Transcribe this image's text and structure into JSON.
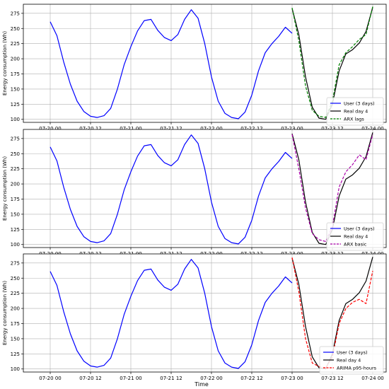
{
  "figure": {
    "xlabel": "Time",
    "x_ticks": [
      "07-20 00",
      "07-20 12",
      "07-21 00",
      "07-21 12",
      "07-22 00",
      "07-22 12",
      "07-23 00",
      "07-23 12",
      "07-24 00"
    ]
  },
  "chart_data": [
    {
      "type": "line",
      "ylabel": "Energy consumption (Wh)",
      "xlim": [
        -8,
        100
      ],
      "ylim": [
        95,
        290
      ],
      "grid": true,
      "legend_position": "bottom-right",
      "y_ticks": [
        100,
        125,
        150,
        175,
        200,
        225,
        250,
        275
      ],
      "series": [
        {
          "name": "User (3 days)",
          "color": "#0000ff",
          "dash": "solid",
          "x": [
            0,
            2,
            4,
            6,
            8,
            10,
            12,
            14,
            16,
            18,
            20,
            22,
            24,
            26,
            28,
            30,
            32,
            34,
            36,
            38,
            40,
            42,
            44,
            46,
            48,
            50,
            52,
            54,
            56,
            58,
            60,
            62,
            64,
            66,
            68,
            70,
            72
          ],
          "y": [
            261,
            238,
            195,
            158,
            130,
            113,
            105,
            103,
            106,
            118,
            150,
            190,
            220,
            246,
            263,
            265,
            247,
            235,
            230,
            240,
            265,
            281,
            267,
            225,
            170,
            130,
            110,
            103,
            101,
            112,
            140,
            180,
            210,
            225,
            237,
            252,
            242
          ]
        },
        {
          "name": "Real day 4",
          "color": "#000000",
          "dash": "solid",
          "x": [
            72,
            74,
            76,
            78,
            80,
            82,
            84,
            86,
            88,
            90,
            92,
            94,
            96
          ],
          "y": [
            283,
            240,
            170,
            120,
            102,
            100,
            125,
            180,
            208,
            215,
            226,
            245,
            285
          ]
        },
        {
          "name": "ARX lags",
          "color": "#008000",
          "dash": "dashed",
          "x": [
            72,
            74,
            76,
            78,
            80,
            82,
            84,
            86,
            88,
            90,
            92,
            94,
            96
          ],
          "y": [
            284,
            230,
            155,
            115,
            105,
            103,
            130,
            190,
            210,
            220,
            232,
            240,
            286
          ]
        }
      ]
    },
    {
      "type": "line",
      "ylabel": "Energy consumption (Wh)",
      "xlim": [
        -8,
        100
      ],
      "ylim": [
        95,
        290
      ],
      "grid": true,
      "legend_position": "bottom-right",
      "y_ticks": [
        100,
        125,
        150,
        175,
        200,
        225,
        250,
        275
      ],
      "series": [
        {
          "name": "User (3 days)",
          "color": "#0000ff",
          "dash": "solid",
          "x": [
            0,
            2,
            4,
            6,
            8,
            10,
            12,
            14,
            16,
            18,
            20,
            22,
            24,
            26,
            28,
            30,
            32,
            34,
            36,
            38,
            40,
            42,
            44,
            46,
            48,
            50,
            52,
            54,
            56,
            58,
            60,
            62,
            64,
            66,
            68,
            70,
            72
          ],
          "y": [
            261,
            238,
            195,
            158,
            130,
            113,
            105,
            103,
            106,
            118,
            150,
            190,
            220,
            246,
            263,
            265,
            247,
            235,
            230,
            240,
            265,
            281,
            267,
            225,
            170,
            130,
            110,
            103,
            101,
            112,
            140,
            180,
            210,
            225,
            237,
            252,
            242
          ]
        },
        {
          "name": "Real day 4",
          "color": "#000000",
          "dash": "solid",
          "x": [
            72,
            74,
            76,
            78,
            80,
            82,
            84,
            86,
            88,
            90,
            92,
            94,
            96
          ],
          "y": [
            283,
            240,
            170,
            120,
            102,
            100,
            125,
            180,
            208,
            215,
            226,
            245,
            285
          ]
        },
        {
          "name": "ARX basic",
          "color": "#aa00aa",
          "dash": "dashed",
          "x": [
            72,
            74,
            76,
            78,
            80,
            82,
            84,
            86,
            88,
            90,
            92,
            94,
            96
          ],
          "y": [
            282,
            225,
            160,
            118,
            108,
            105,
            130,
            195,
            220,
            232,
            248,
            240,
            282
          ]
        }
      ]
    },
    {
      "type": "line",
      "ylabel": "Energy consumption (Wh)",
      "xlim": [
        -8,
        100
      ],
      "ylim": [
        95,
        290
      ],
      "grid": true,
      "legend_position": "bottom-right",
      "y_ticks": [
        100,
        125,
        150,
        175,
        200,
        225,
        250,
        275
      ],
      "series": [
        {
          "name": "User (3 days)",
          "color": "#0000ff",
          "dash": "solid",
          "x": [
            0,
            2,
            4,
            6,
            8,
            10,
            12,
            14,
            16,
            18,
            20,
            22,
            24,
            26,
            28,
            30,
            32,
            34,
            36,
            38,
            40,
            42,
            44,
            46,
            48,
            50,
            52,
            54,
            56,
            58,
            60,
            62,
            64,
            66,
            68,
            70,
            72
          ],
          "y": [
            261,
            238,
            195,
            158,
            130,
            113,
            105,
            103,
            106,
            118,
            150,
            190,
            220,
            246,
            263,
            265,
            247,
            235,
            230,
            240,
            265,
            281,
            267,
            225,
            170,
            130,
            110,
            103,
            101,
            112,
            140,
            180,
            210,
            225,
            237,
            252,
            242
          ]
        },
        {
          "name": "Real day 4",
          "color": "#000000",
          "dash": "solid",
          "x": [
            72,
            74,
            76,
            78,
            80,
            82,
            84,
            86,
            88,
            90,
            92,
            94,
            96
          ],
          "y": [
            283,
            240,
            170,
            120,
            102,
            100,
            125,
            180,
            208,
            215,
            226,
            245,
            285
          ]
        },
        {
          "name": "ARIMA p95-hours",
          "color": "#ff0000",
          "dash": "dashed",
          "x": [
            72,
            74,
            76,
            78,
            80,
            82,
            84,
            86,
            88,
            90,
            92,
            94,
            96
          ],
          "y": [
            284,
            228,
            150,
            110,
            104,
            102,
            120,
            175,
            200,
            210,
            215,
            208,
            262
          ]
        }
      ]
    }
  ]
}
